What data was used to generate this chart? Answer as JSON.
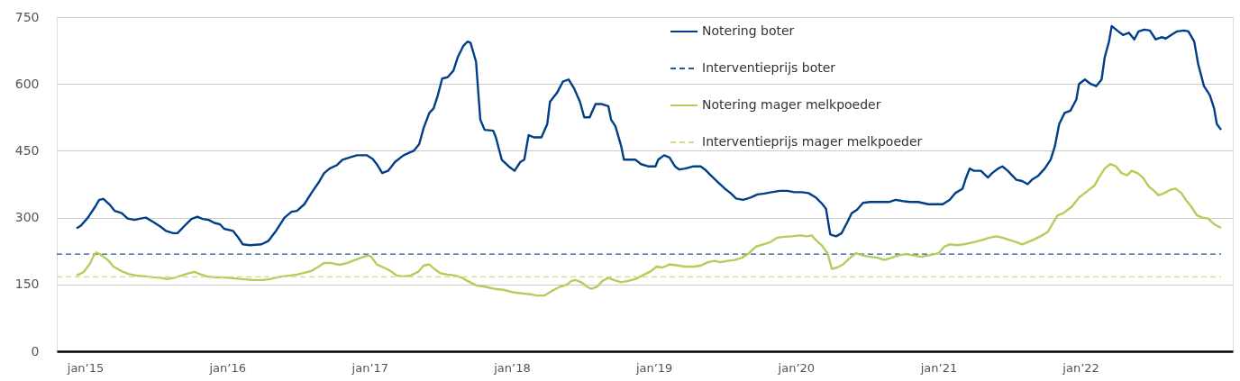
{
  "chart_data": {
    "type": "line",
    "xlim": [
      "2014-10-20",
      "2023-01-27"
    ],
    "ylim": [
      0,
      750
    ],
    "yticks": [
      0,
      150,
      300,
      450,
      600,
      750
    ],
    "xticks": [
      {
        "value": "2015-01-01",
        "label": "jan’15"
      },
      {
        "value": "2016-01-01",
        "label": "jan’16"
      },
      {
        "value": "2017-01-01",
        "label": "jan’17"
      },
      {
        "value": "2018-01-01",
        "label": "jan’18"
      },
      {
        "value": "2019-01-01",
        "label": "jan’19"
      },
      {
        "value": "2020-01-01",
        "label": "jan’20"
      },
      {
        "value": "2021-01-01",
        "label": "jan’21"
      },
      {
        "value": "2022-01-01",
        "label": "jan’22"
      }
    ],
    "grid": "y",
    "legend": "top",
    "line_style": "solid",
    "marker": "none",
    "series": [
      {
        "name": "Notering boter",
        "color": "#003f87",
        "x": [
          "2014-12-10",
          "2014-12-21",
          "2015-01-08",
          "2015-01-27",
          "2015-02-06",
          "2015-02-17",
          "2015-03-04",
          "2015-03-18",
          "2015-04-05",
          "2015-04-20",
          "2015-05-08",
          "2015-05-23",
          "2015-06-06",
          "2015-06-25",
          "2015-07-13",
          "2015-07-28",
          "2015-08-15",
          "2015-08-26",
          "2015-09-17",
          "2015-10-01",
          "2015-10-16",
          "2015-10-30",
          "2015-11-14",
          "2015-11-29",
          "2015-12-13",
          "2015-12-24",
          "2016-01-16",
          "2016-01-27",
          "2016-02-10",
          "2016-02-28",
          "2016-03-29",
          "2016-04-16",
          "2016-05-05",
          "2016-05-27",
          "2016-06-14",
          "2016-06-28",
          "2016-07-17",
          "2016-08-04",
          "2016-08-22",
          "2016-09-06",
          "2016-09-20",
          "2016-10-09",
          "2016-10-23",
          "2016-11-10",
          "2016-11-29",
          "2016-12-24",
          "2017-01-08",
          "2017-01-19",
          "2017-02-02",
          "2017-02-17",
          "2017-03-07",
          "2017-03-29",
          "2017-04-24",
          "2017-05-08",
          "2017-05-19",
          "2017-06-03",
          "2017-06-14",
          "2017-06-25",
          "2017-07-06",
          "2017-07-20",
          "2017-08-04",
          "2017-08-15",
          "2017-08-29",
          "2017-09-09",
          "2017-09-17",
          "2017-10-01",
          "2017-10-12",
          "2017-10-23",
          "2017-11-14",
          "2017-11-21",
          "2017-12-06",
          "2017-12-24",
          "2018-01-08",
          "2018-01-23",
          "2018-02-02",
          "2018-02-13",
          "2018-02-28",
          "2018-03-18",
          "2018-04-02",
          "2018-04-09",
          "2018-04-27",
          "2018-05-12",
          "2018-05-27",
          "2018-06-10",
          "2018-06-25",
          "2018-07-06",
          "2018-07-20",
          "2018-08-04",
          "2018-08-18",
          "2018-09-06",
          "2018-09-13",
          "2018-09-24",
          "2018-10-09",
          "2018-10-16",
          "2018-10-30",
          "2018-11-14",
          "2018-11-29",
          "2018-12-17",
          "2019-01-05",
          "2019-01-12",
          "2019-01-27",
          "2019-02-10",
          "2019-02-24",
          "2019-03-07",
          "2019-03-22",
          "2019-04-13",
          "2019-05-01",
          "2019-05-12",
          "2019-05-27",
          "2019-06-14",
          "2019-07-02",
          "2019-07-17",
          "2019-07-31",
          "2019-08-18",
          "2019-09-06",
          "2019-09-24",
          "2019-10-12",
          "2019-10-30",
          "2019-11-21",
          "2019-12-10",
          "2019-12-28",
          "2020-01-16",
          "2020-02-02",
          "2020-02-21",
          "2020-03-07",
          "2020-03-18",
          "2020-03-29",
          "2020-04-13",
          "2020-04-27",
          "2020-05-12",
          "2020-05-23",
          "2020-06-06",
          "2020-06-21",
          "2020-07-09",
          "2020-07-31",
          "2020-08-26",
          "2020-09-13",
          "2020-10-01",
          "2020-10-20",
          "2020-11-10",
          "2020-12-06",
          "2020-12-24",
          "2021-01-12",
          "2021-01-30",
          "2021-02-13",
          "2021-03-04",
          "2021-03-11",
          "2021-03-22",
          "2021-04-02",
          "2021-04-20",
          "2021-05-08",
          "2021-05-19",
          "2021-06-03",
          "2021-06-14",
          "2021-06-28",
          "2021-07-09",
          "2021-07-20",
          "2021-08-04",
          "2021-08-18",
          "2021-08-29",
          "2021-09-13",
          "2021-10-01",
          "2021-10-16",
          "2021-10-27",
          "2021-11-07",
          "2021-11-21",
          "2021-12-06",
          "2021-12-21",
          "2021-12-28",
          "2022-01-12",
          "2022-01-27",
          "2022-02-10",
          "2022-02-24",
          "2022-03-04",
          "2022-03-15",
          "2022-03-22",
          "2022-04-05",
          "2022-04-20",
          "2022-05-05",
          "2022-05-19",
          "2022-05-30",
          "2022-06-14",
          "2022-06-28",
          "2022-07-13",
          "2022-07-28",
          "2022-08-08",
          "2022-08-22",
          "2022-09-06",
          "2022-09-24",
          "2022-10-05",
          "2022-10-20",
          "2022-10-30",
          "2022-11-14",
          "2022-11-29",
          "2022-12-10",
          "2022-12-17",
          "2022-12-28"
        ],
        "values": [
          276,
          282,
          300,
          325,
          340,
          342,
          330,
          315,
          310,
          298,
          295,
          298,
          300,
          290,
          280,
          270,
          265,
          265,
          285,
          297,
          302,
          297,
          295,
          288,
          285,
          275,
          270,
          258,
          240,
          238,
          240,
          248,
          270,
          300,
          313,
          315,
          330,
          355,
          378,
          400,
          410,
          418,
          430,
          435,
          440,
          440,
          432,
          420,
          400,
          405,
          425,
          440,
          450,
          465,
          500,
          535,
          545,
          575,
          612,
          615,
          630,
          660,
          685,
          695,
          692,
          650,
          520,
          497,
          495,
          480,
          430,
          415,
          405,
          425,
          430,
          485,
          480,
          480,
          510,
          560,
          580,
          605,
          610,
          590,
          560,
          525,
          525,
          555,
          555,
          550,
          520,
          505,
          460,
          430,
          430,
          430,
          420,
          415,
          415,
          430,
          440,
          435,
          415,
          408,
          410,
          415,
          415,
          408,
          395,
          380,
          365,
          355,
          343,
          340,
          345,
          352,
          354,
          357,
          360,
          360,
          357,
          357,
          355,
          345,
          332,
          320,
          262,
          258,
          265,
          290,
          310,
          318,
          333,
          335,
          335,
          335,
          340,
          337,
          335,
          335,
          330,
          330,
          330,
          340,
          355,
          365,
          385,
          410,
          405,
          405,
          390,
          400,
          410,
          415,
          405,
          395,
          385,
          382,
          375,
          385,
          393,
          410,
          430,
          460,
          510,
          535,
          540,
          565,
          600,
          610,
          600,
          595,
          610,
          660,
          695,
          730,
          720,
          710,
          715,
          700,
          718,
          722,
          720,
          700,
          705,
          702,
          710,
          718,
          720,
          718,
          695,
          645,
          595,
          575,
          545,
          510,
          497
        ]
      },
      {
        "name": "Interventieprijs boter",
        "color": "#1f5aa6",
        "line_style": "dashed",
        "x": [
          "2014-10-20",
          "2022-12-28"
        ],
        "values": [
          218,
          218
        ]
      },
      {
        "name": "Notering mager melkpoeder",
        "color": "#b5cc5a",
        "x": [
          "2014-12-10",
          "2014-12-28",
          "2015-01-12",
          "2015-01-23",
          "2015-01-30",
          "2015-02-13",
          "2015-02-28",
          "2015-03-15",
          "2015-03-29",
          "2015-04-09",
          "2015-04-24",
          "2015-05-12",
          "2015-06-06",
          "2015-06-25",
          "2015-07-13",
          "2015-07-31",
          "2015-08-18",
          "2015-09-06",
          "2015-09-24",
          "2015-10-09",
          "2015-10-23",
          "2015-11-10",
          "2015-11-29",
          "2015-12-21",
          "2016-01-16",
          "2016-02-06",
          "2016-03-07",
          "2016-04-02",
          "2016-04-20",
          "2016-05-08",
          "2016-05-23",
          "2016-06-10",
          "2016-06-28",
          "2016-07-17",
          "2016-08-04",
          "2016-08-26",
          "2016-09-06",
          "2016-09-24",
          "2016-10-16",
          "2016-11-03",
          "2016-11-21",
          "2016-12-10",
          "2016-12-28",
          "2017-01-05",
          "2017-01-19",
          "2017-02-06",
          "2017-02-24",
          "2017-03-11",
          "2017-03-29",
          "2017-04-16",
          "2017-05-05",
          "2017-05-19",
          "2017-06-03",
          "2017-06-17",
          "2017-07-02",
          "2017-07-20",
          "2017-08-08",
          "2017-08-26",
          "2017-09-09",
          "2017-10-01",
          "2017-10-23",
          "2017-11-18",
          "2017-12-10",
          "2018-01-01",
          "2018-01-27",
          "2018-02-17",
          "2018-03-07",
          "2018-03-25",
          "2018-04-13",
          "2018-05-05",
          "2018-05-23",
          "2018-06-03",
          "2018-06-14",
          "2018-06-28",
          "2018-07-13",
          "2018-07-24",
          "2018-08-08",
          "2018-08-22",
          "2018-09-06",
          "2018-09-20",
          "2018-10-09",
          "2018-10-27",
          "2018-11-14",
          "2018-12-02",
          "2018-12-21",
          "2019-01-08",
          "2019-01-23",
          "2019-02-10",
          "2019-02-28",
          "2019-03-22",
          "2019-04-13",
          "2019-05-01",
          "2019-05-19",
          "2019-06-06",
          "2019-06-21",
          "2019-07-09",
          "2019-07-28",
          "2019-08-15",
          "2019-09-02",
          "2019-09-20",
          "2019-10-09",
          "2019-10-27",
          "2019-11-14",
          "2019-12-02",
          "2019-12-21",
          "2020-01-12",
          "2020-01-30",
          "2020-02-10",
          "2020-02-21",
          "2020-03-07",
          "2020-03-22",
          "2020-04-02",
          "2020-04-16",
          "2020-05-01",
          "2020-05-19",
          "2020-06-03",
          "2020-06-21",
          "2020-07-09",
          "2020-07-28",
          "2020-08-15",
          "2020-09-02",
          "2020-09-20",
          "2020-10-09",
          "2020-10-30",
          "2020-11-18",
          "2020-12-06",
          "2021-01-01",
          "2021-01-16",
          "2021-01-30",
          "2021-02-17",
          "2021-03-07",
          "2021-04-02",
          "2021-04-24",
          "2021-05-12",
          "2021-05-30",
          "2021-06-14",
          "2021-07-02",
          "2021-07-20",
          "2021-08-04",
          "2021-08-18",
          "2021-09-06",
          "2021-09-24",
          "2021-10-09",
          "2021-10-20",
          "2021-11-03",
          "2021-11-18",
          "2021-12-10",
          "2021-12-28",
          "2022-01-19",
          "2022-02-06",
          "2022-02-17",
          "2022-03-04",
          "2022-03-18",
          "2022-04-02",
          "2022-04-16",
          "2022-05-01",
          "2022-05-12",
          "2022-05-27",
          "2022-06-10",
          "2022-06-25",
          "2022-07-09",
          "2022-07-20",
          "2022-08-04",
          "2022-08-18",
          "2022-09-02",
          "2022-09-17",
          "2022-09-28",
          "2022-10-12",
          "2022-10-27",
          "2022-11-10",
          "2022-11-25",
          "2022-12-10",
          "2022-12-28"
        ],
        "values": [
          170,
          178,
          195,
          215,
          222,
          215,
          205,
          190,
          183,
          178,
          173,
          170,
          168,
          166,
          165,
          162,
          165,
          170,
          175,
          178,
          173,
          168,
          166,
          166,
          164,
          162,
          160,
          160,
          162,
          166,
          168,
          170,
          172,
          176,
          180,
          192,
          198,
          198,
          194,
          198,
          204,
          210,
          215,
          212,
          195,
          188,
          180,
          170,
          168,
          170,
          178,
          192,
          195,
          184,
          175,
          172,
          170,
          165,
          158,
          148,
          145,
          140,
          138,
          133,
          130,
          128,
          125,
          125,
          135,
          145,
          150,
          158,
          160,
          155,
          145,
          140,
          145,
          158,
          165,
          160,
          155,
          158,
          162,
          170,
          178,
          190,
          188,
          195,
          193,
          190,
          190,
          192,
          200,
          203,
          200,
          203,
          205,
          210,
          220,
          235,
          240,
          245,
          255,
          257,
          258,
          260,
          258,
          260,
          250,
          238,
          220,
          185,
          188,
          195,
          210,
          220,
          215,
          212,
          210,
          205,
          210,
          215,
          218,
          215,
          212,
          215,
          220,
          235,
          240,
          238,
          240,
          245,
          250,
          255,
          258,
          255,
          250,
          245,
          240,
          245,
          252,
          260,
          268,
          285,
          305,
          310,
          325,
          345,
          360,
          372,
          390,
          410,
          420,
          415,
          400,
          395,
          405,
          400,
          390,
          370,
          360,
          350,
          355,
          362,
          365,
          355,
          340,
          325,
          305,
          300,
          298,
          285,
          277
        ]
      },
      {
        "name": "Interventieprijs mager melkpoeder",
        "color": "#cfdc8a",
        "line_style": "dashed",
        "x": [
          "2014-10-20",
          "2022-12-28"
        ],
        "values": [
          167,
          167
        ]
      }
    ]
  }
}
